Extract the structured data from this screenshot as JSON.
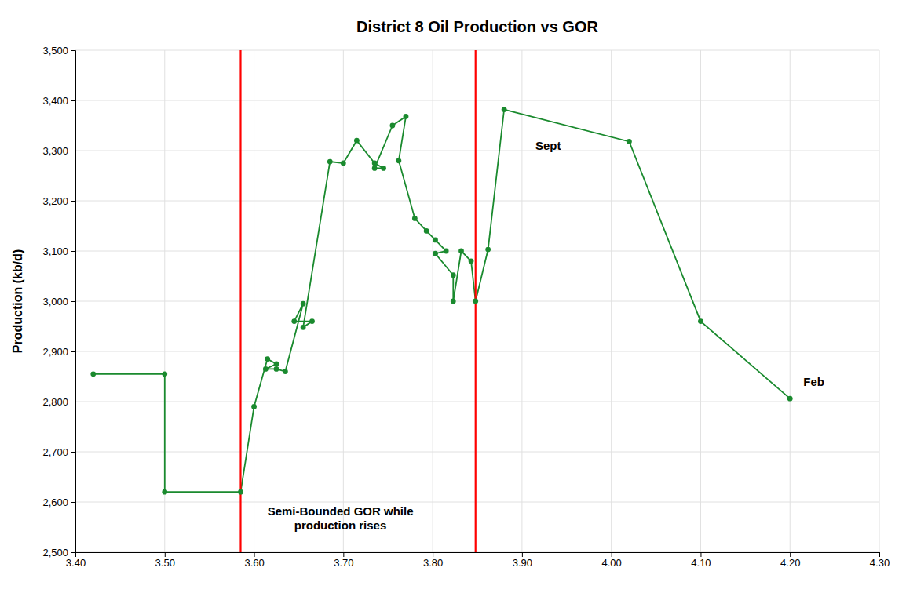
{
  "chart_data": {
    "type": "line",
    "title": "District 8 Oil Production vs GOR",
    "ylabel": "Production (kb/d)",
    "x": [
      3.42,
      3.5,
      3.5,
      3.585,
      3.6,
      3.615,
      3.625,
      3.613,
      3.625,
      3.635,
      3.655,
      3.645,
      3.665,
      3.655,
      3.685,
      3.7,
      3.715,
      3.735,
      3.745,
      3.735,
      3.755,
      3.77,
      3.762,
      3.78,
      3.793,
      3.803,
      3.815,
      3.803,
      3.823,
      3.823,
      3.832,
      3.843,
      3.848,
      3.862,
      3.88,
      4.02,
      4.1,
      4.2
    ],
    "values": [
      2855,
      2855,
      2620,
      2620,
      2790,
      2885,
      2875,
      2865,
      2865,
      2860,
      2995,
      2960,
      2960,
      2948,
      3278,
      3275,
      3320,
      3275,
      3265,
      3265,
      3350,
      3368,
      3280,
      3165,
      3140,
      3122,
      3100,
      3095,
      3052,
      3000,
      3100,
      3080,
      3000,
      3103,
      3382,
      3318,
      2960,
      2806
    ],
    "color": "#1a8a2e",
    "marker": "circle",
    "xlim": [
      3.4,
      4.3
    ],
    "ylim": [
      2500,
      3500
    ],
    "xticks": [
      {
        "value": 3.4,
        "label": "3.40"
      },
      {
        "value": 3.5,
        "label": "3.50"
      },
      {
        "value": 3.6,
        "label": "3.60"
      },
      {
        "value": 3.7,
        "label": "3.70"
      },
      {
        "value": 3.8,
        "label": "3.80"
      },
      {
        "value": 3.9,
        "label": "3.90"
      },
      {
        "value": 4.0,
        "label": "4.00"
      },
      {
        "value": 4.1,
        "label": "4.10"
      },
      {
        "value": 4.2,
        "label": "4.20"
      },
      {
        "value": 4.3,
        "label": "4.30"
      }
    ],
    "yticks": [
      {
        "value": 2500,
        "label": "2,500"
      },
      {
        "value": 2600,
        "label": "2,600"
      },
      {
        "value": 2700,
        "label": "2,700"
      },
      {
        "value": 2800,
        "label": "2,800"
      },
      {
        "value": 2900,
        "label": "2,900"
      },
      {
        "value": 3000,
        "label": "3,000"
      },
      {
        "value": 3100,
        "label": "3,100"
      },
      {
        "value": 3200,
        "label": "3,200"
      },
      {
        "value": 3300,
        "label": "3,300"
      },
      {
        "value": 3400,
        "label": "3,400"
      },
      {
        "value": 3500,
        "label": "3,500"
      }
    ],
    "grid": true,
    "vlines": [
      {
        "x": 3.585,
        "color": "red"
      },
      {
        "x": 3.848,
        "color": "red"
      }
    ],
    "annotations": [
      {
        "text": "Sept",
        "x": 3.915,
        "y": 3310
      },
      {
        "text": "Feb",
        "x": 4.215,
        "y": 2840
      },
      {
        "text": "Semi-Bounded GOR while\nproduction rises",
        "x": 3.615,
        "y": 2595
      }
    ]
  }
}
